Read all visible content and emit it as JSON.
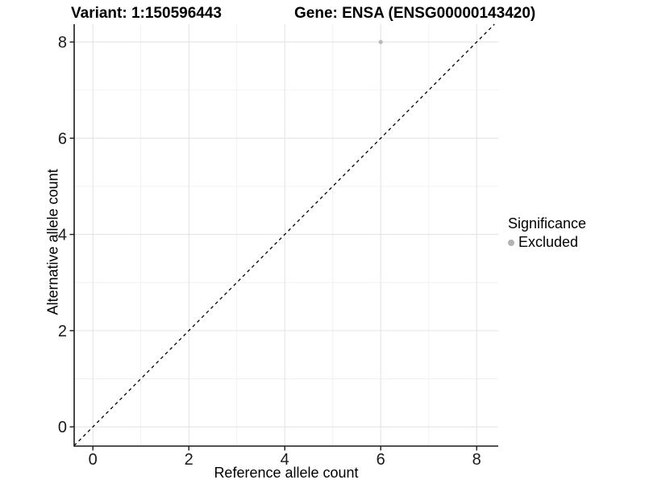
{
  "chart_data": {
    "type": "scatter",
    "title_left": "Variant: 1:150596443",
    "title_right": "Gene: ENSA (ENSG00000143420)",
    "xlabel": "Reference allele count",
    "ylabel": "Alternative allele count",
    "xlim": [
      -0.39,
      8.45
    ],
    "ylim": [
      -0.4,
      8.37
    ],
    "x_major_ticks": [
      0,
      2,
      4,
      6,
      8
    ],
    "y_major_ticks": [
      0,
      2,
      4,
      6,
      8
    ],
    "x_minor_ticks": [
      1,
      3,
      5,
      7
    ],
    "y_minor_ticks": [
      1,
      3,
      5,
      7
    ],
    "grid": true,
    "points": [
      {
        "x": 6,
        "y": 8,
        "series": "Excluded"
      }
    ],
    "reference_line": {
      "type": "abline",
      "slope": 1,
      "intercept": 0,
      "style": "dashed"
    },
    "legend": {
      "title": "Significance",
      "position": "right",
      "items": [
        {
          "label": "Excluded",
          "color": "#b3b3b3"
        }
      ]
    },
    "colors": {
      "point": "#b9b9b9",
      "grid_major": "#e4e4e4",
      "grid_minor": "#f1f1f1",
      "axis_line": "#1a1a1a",
      "tick_text": "#1a1a1a",
      "dashed_line": "#000000",
      "background": "#ffffff"
    }
  }
}
